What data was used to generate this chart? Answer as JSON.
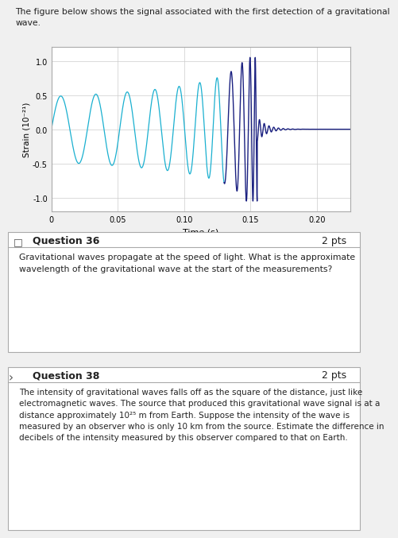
{
  "title_text": "The figure below shows the signal associated with the first detection of a gravitational\nwave.",
  "xlabel": "Time (s)",
  "ylabel": "Strain (10⁻²¹)",
  "xlim": [
    0,
    0.225
  ],
  "ylim": [
    -1.2,
    1.2
  ],
  "xticks": [
    0,
    0.05,
    0.1,
    0.15,
    0.2
  ],
  "yticks": [
    -1.0,
    -0.5,
    0.0,
    0.5,
    1.0
  ],
  "xtick_labels": [
    "0",
    "0.05",
    "0.10",
    "0.15",
    "0.20"
  ],
  "ytick_labels": [
    "-1.0",
    "-0.5",
    "0.0",
    "0.5",
    "1.0"
  ],
  "line_color_early": "#1ab0d0",
  "line_color_late": "#1a2080",
  "bg_color": "#f0f0f0",
  "plot_bg": "#ffffff",
  "q36_title": "Question 36",
  "q36_pts": "2 pts",
  "q36_text": "Gravitational waves propagate at the speed of light. What is the approximate\nwavelength of the gravitational wave at the start of the measurements?",
  "q38_title": "Question 38",
  "q38_pts": "2 pts",
  "q38_text": "The intensity of gravitational waves falls off as the square of the distance, just like\nelectromagnetic waves. The source that produced this gravitational wave signal is at a\ndistance approximately 10²⁵ m from Earth. Suppose the intensity of the wave is\nmeasured by an observer who is only 10 km from the source. Estimate the difference in\ndecibels of the intensity measured by this observer compared to that on Earth."
}
